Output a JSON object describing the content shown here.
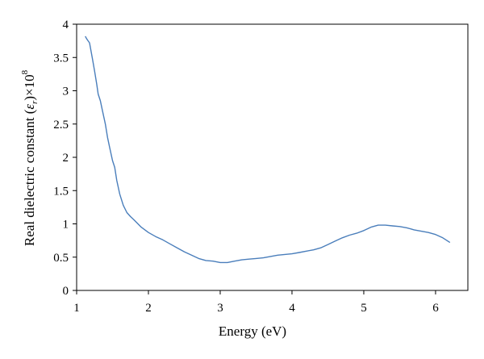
{
  "chart_data": {
    "type": "line",
    "title": "",
    "xlabel": "Energy (eV)",
    "ylabel": {
      "prefix": "Real dielectric constant (",
      "symbol": "ε",
      "subscript": "r",
      "suffix": ")×10",
      "exponent": "8"
    },
    "xlim": [
      1,
      6.45
    ],
    "ylim": [
      0,
      4
    ],
    "xticks": [
      1,
      2,
      3,
      4,
      5,
      6
    ],
    "yticks": [
      0,
      0.5,
      1,
      1.5,
      2,
      2.5,
      3,
      3.5,
      4
    ],
    "xtick_labels": [
      "1",
      "2",
      "3",
      "4",
      "5",
      "6"
    ],
    "ytick_labels": [
      "0",
      "0.5",
      "1",
      "1.5",
      "2",
      "2.5",
      "3",
      "3.5",
      "4"
    ],
    "grid": false,
    "legend": "none",
    "series": [
      {
        "color": "#4a7ebb",
        "x": [
          1.12,
          1.14,
          1.16,
          1.18,
          1.2,
          1.22,
          1.25,
          1.28,
          1.3,
          1.33,
          1.36,
          1.4,
          1.43,
          1.46,
          1.5,
          1.53,
          1.56,
          1.6,
          1.65,
          1.7,
          1.75,
          1.8,
          1.9,
          2.0,
          2.1,
          2.2,
          2.3,
          2.4,
          2.5,
          2.6,
          2.7,
          2.8,
          2.9,
          3.0,
          3.1,
          3.2,
          3.3,
          3.4,
          3.5,
          3.6,
          3.7,
          3.8,
          3.9,
          4.0,
          4.1,
          4.2,
          4.3,
          4.4,
          4.5,
          4.6,
          4.7,
          4.8,
          4.9,
          5.0,
          5.1,
          5.2,
          5.3,
          5.4,
          5.5,
          5.6,
          5.7,
          5.8,
          5.9,
          6.0,
          6.1,
          6.2
        ],
        "y": [
          3.82,
          3.78,
          3.75,
          3.72,
          3.6,
          3.48,
          3.3,
          3.1,
          2.95,
          2.85,
          2.7,
          2.5,
          2.3,
          2.15,
          1.95,
          1.85,
          1.65,
          1.45,
          1.28,
          1.17,
          1.11,
          1.06,
          0.95,
          0.87,
          0.81,
          0.76,
          0.7,
          0.64,
          0.58,
          0.53,
          0.48,
          0.45,
          0.44,
          0.42,
          0.42,
          0.44,
          0.46,
          0.47,
          0.48,
          0.49,
          0.51,
          0.53,
          0.54,
          0.55,
          0.57,
          0.59,
          0.61,
          0.64,
          0.69,
          0.74,
          0.79,
          0.83,
          0.86,
          0.9,
          0.95,
          0.98,
          0.98,
          0.97,
          0.96,
          0.94,
          0.91,
          0.89,
          0.87,
          0.84,
          0.79,
          0.72
        ]
      }
    ]
  }
}
